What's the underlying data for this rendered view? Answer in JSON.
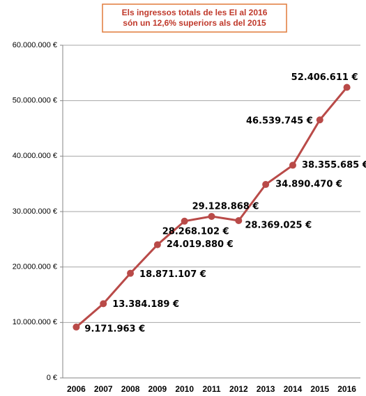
{
  "chart_data": {
    "type": "line",
    "title": [
      "Els ingressos totals de les EI al 2016",
      "són un 12,6% superiors als del 2015"
    ],
    "categories": [
      "2006",
      "2007",
      "2008",
      "2009",
      "2010",
      "2011",
      "2012",
      "2013",
      "2014",
      "2015",
      "2016"
    ],
    "series": [
      {
        "name": "Ingressos totals",
        "color": "#b94a48",
        "values": [
          9171963,
          13384189,
          18871107,
          24019880,
          28268102,
          29128868,
          28369025,
          34890470,
          38355685,
          46539745,
          52406611
        ],
        "value_labels": [
          "9.171.963 €",
          "13.384.189 €",
          "18.871.107 €",
          "24.019.880 €",
          "28.268.102 €",
          "29.128.868 €",
          "28.369.025 €",
          "34.890.470 €",
          "38.355.685 €",
          "46.539.745 €",
          "52.406.611 €"
        ]
      }
    ],
    "ylim": [
      0,
      60000000
    ],
    "yticks": [
      {
        "value": 0,
        "label": "0 €"
      },
      {
        "value": 10000000,
        "label": "10.000.000 €"
      },
      {
        "value": 20000000,
        "label": "20.000.000 €"
      },
      {
        "value": 30000000,
        "label": "30.000.000 €"
      },
      {
        "value": 40000000,
        "label": "40.000.000 €"
      },
      {
        "value": 50000000,
        "label": "50.000.000 €"
      },
      {
        "value": 60000000,
        "label": "60.000.000 €"
      }
    ],
    "grid": true
  }
}
